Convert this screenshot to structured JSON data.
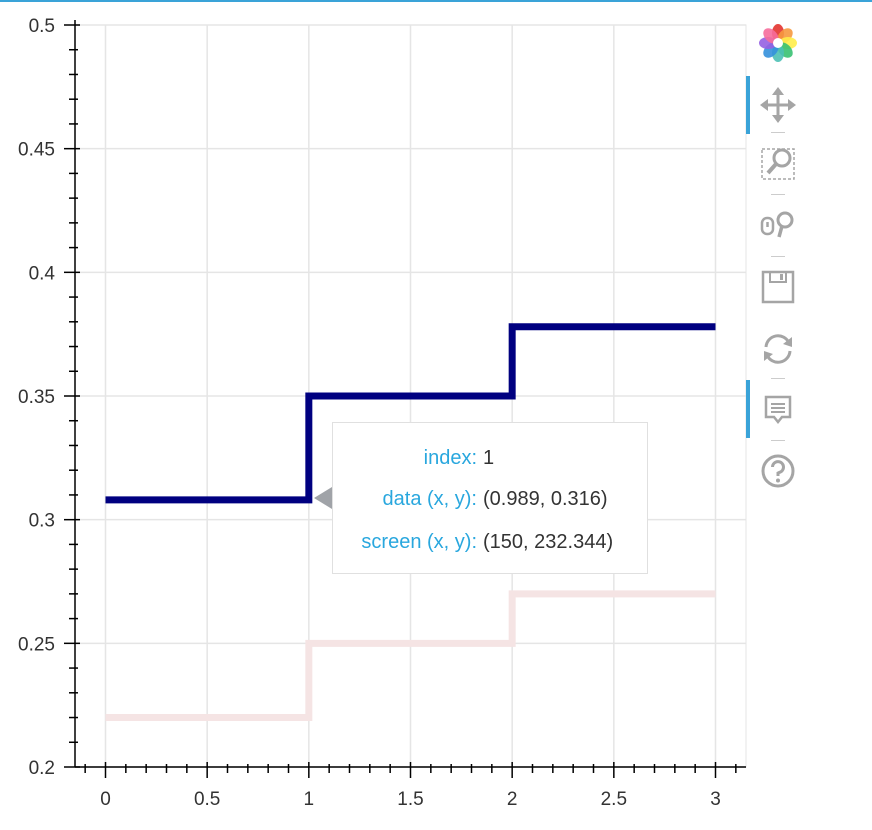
{
  "chart_data": {
    "type": "line",
    "step_mode": "after",
    "title": "",
    "xlabel": "",
    "ylabel": "",
    "xlim": [
      -0.15,
      3.15
    ],
    "ylim": [
      0.2,
      0.5
    ],
    "x_ticks": [
      0,
      0.5,
      1,
      1.5,
      2,
      2.5,
      3
    ],
    "x_tick_labels": [
      "0",
      "0.5",
      "1",
      "1.5",
      "2",
      "2.5",
      "3"
    ],
    "y_ticks": [
      0.2,
      0.25,
      0.3,
      0.35,
      0.4,
      0.45,
      0.5
    ],
    "y_tick_labels": [
      "0.2",
      "0.25",
      "0.3",
      "0.35",
      "0.4",
      "0.45",
      "0.5"
    ],
    "grid": true,
    "x": [
      0,
      1,
      2,
      3
    ],
    "series": [
      {
        "values": [
          0.308,
          0.35,
          0.378,
          0.378
        ],
        "color": "#000080",
        "line_width": 7
      },
      {
        "values": [
          0.22,
          0.25,
          0.27,
          0.27
        ],
        "color": "#f5e4e4",
        "line_width": 7
      }
    ]
  },
  "tooltip": {
    "rows": [
      {
        "label": "index:",
        "value": "1"
      },
      {
        "label": "data (x, y):",
        "value": "(0.989, 0.316)"
      },
      {
        "label": "screen (x, y):",
        "value": "(150, 232.344)"
      }
    ]
  },
  "toolbar": {
    "tools": [
      {
        "icon": "bokeh-logo-icon",
        "active": false
      },
      {
        "icon": "pan-icon",
        "active": true
      },
      {
        "icon": "box-zoom-icon",
        "active": false
      },
      {
        "icon": "wheel-zoom-icon",
        "active": false
      },
      {
        "icon": "save-icon",
        "active": false
      },
      {
        "icon": "reset-icon",
        "active": false
      },
      {
        "icon": "hover-icon",
        "active": true
      },
      {
        "icon": "help-icon",
        "active": false
      }
    ]
  },
  "colors": {
    "accent": "#3aa3d8",
    "tooltip_label": "#29a7de",
    "grid": "#e5e5e5",
    "axis": "#000000"
  }
}
